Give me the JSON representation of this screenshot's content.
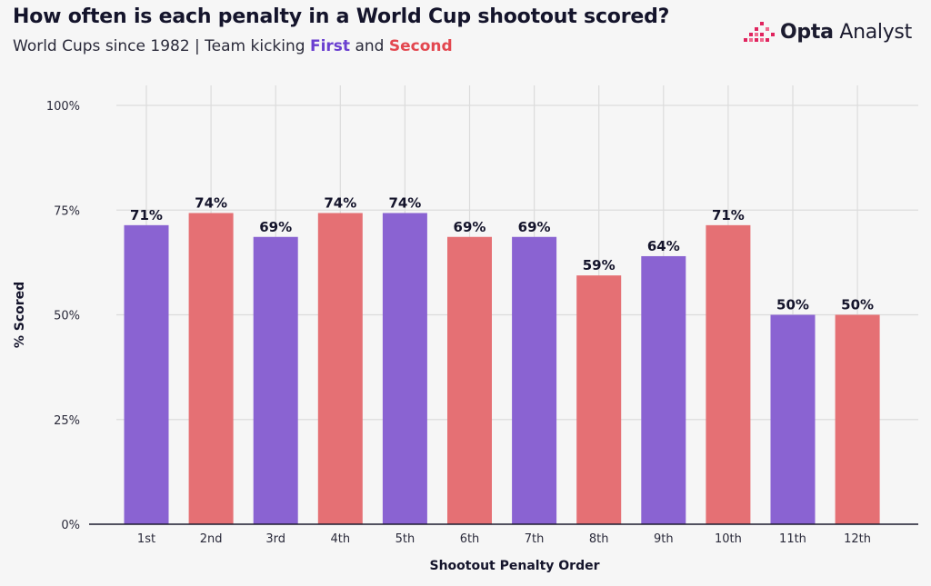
{
  "header": {
    "title": "How often is each penalty in a World Cup shootout scored?",
    "subtitle_prefix": "World Cups since 1982 | Team kicking ",
    "subtitle_first": "First",
    "subtitle_and": " and ",
    "subtitle_second": "Second",
    "logo_bold": "Opta",
    "logo_light": " Analyst"
  },
  "colors": {
    "first": "#8a63d2",
    "second": "#e57074",
    "grid": "#dcdcdc",
    "axis": "#1b1b2f",
    "logo_accent": "#e0245e"
  },
  "chart_data": {
    "type": "bar",
    "categories": [
      "1st",
      "2nd",
      "3rd",
      "4th",
      "5th",
      "6th",
      "7th",
      "8th",
      "9th",
      "10th",
      "11th",
      "12th"
    ],
    "values": [
      71.4,
      74.3,
      68.6,
      74.3,
      74.3,
      68.6,
      68.6,
      59.4,
      64.0,
      71.4,
      50.0,
      50.0
    ],
    "value_labels": [
      "71%",
      "74%",
      "69%",
      "74%",
      "74%",
      "69%",
      "69%",
      "59%",
      "64%",
      "71%",
      "50%",
      "50%"
    ],
    "kicking_team": [
      "First",
      "Second",
      "First",
      "Second",
      "First",
      "Second",
      "First",
      "Second",
      "First",
      "Second",
      "First",
      "Second"
    ],
    "xlabel": "Shootout Penalty Order",
    "ylabel": "% Scored",
    "ylim": [
      0,
      100
    ],
    "yticks": [
      0,
      25,
      50,
      75,
      100
    ],
    "ytick_labels": [
      "0%",
      "25%",
      "50%",
      "75%",
      "100%"
    ],
    "grid": true
  }
}
